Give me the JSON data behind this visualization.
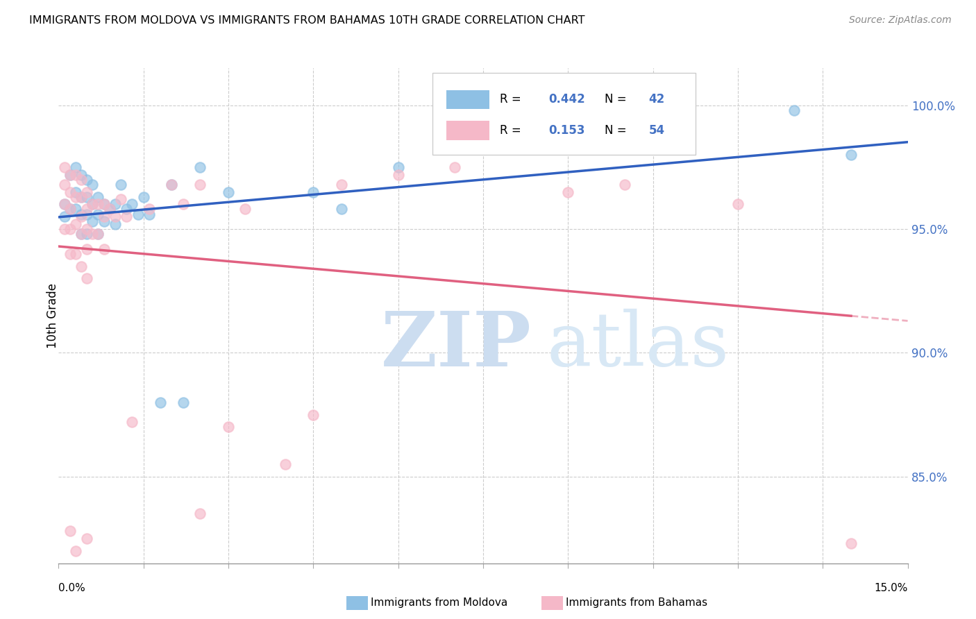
{
  "title": "IMMIGRANTS FROM MOLDOVA VS IMMIGRANTS FROM BAHAMAS 10TH GRADE CORRELATION CHART",
  "source": "Source: ZipAtlas.com",
  "ylabel": "10th Grade",
  "xmin": 0.0,
  "xmax": 0.15,
  "ymin": 0.815,
  "ymax": 1.015,
  "yticks": [
    0.85,
    0.9,
    0.95,
    1.0
  ],
  "ytick_labels": [
    "85.0%",
    "90.0%",
    "95.0%",
    "100.0%"
  ],
  "grid_color": "#cccccc",
  "moldova_color": "#8ec0e4",
  "bahamas_color": "#f5b8c8",
  "moldova_R": 0.442,
  "moldova_N": 42,
  "bahamas_R": 0.153,
  "bahamas_N": 54,
  "moldova_line_color": "#3060c0",
  "bahamas_line_color": "#e06080",
  "moldova_x": [
    0.001,
    0.001,
    0.002,
    0.002,
    0.003,
    0.003,
    0.003,
    0.004,
    0.004,
    0.004,
    0.004,
    0.005,
    0.005,
    0.005,
    0.005,
    0.006,
    0.006,
    0.006,
    0.007,
    0.007,
    0.007,
    0.008,
    0.008,
    0.009,
    0.01,
    0.01,
    0.011,
    0.012,
    0.013,
    0.014,
    0.015,
    0.016,
    0.018,
    0.02,
    0.022,
    0.025,
    0.03,
    0.045,
    0.05,
    0.06,
    0.13,
    0.14
  ],
  "moldova_y": [
    0.96,
    0.955,
    0.972,
    0.958,
    0.975,
    0.965,
    0.958,
    0.972,
    0.963,
    0.956,
    0.948,
    0.97,
    0.963,
    0.956,
    0.948,
    0.968,
    0.96,
    0.953,
    0.963,
    0.956,
    0.948,
    0.96,
    0.953,
    0.958,
    0.96,
    0.952,
    0.968,
    0.958,
    0.96,
    0.956,
    0.963,
    0.956,
    0.88,
    0.968,
    0.88,
    0.975,
    0.965,
    0.965,
    0.958,
    0.975,
    0.998,
    0.98
  ],
  "bahamas_x": [
    0.001,
    0.001,
    0.001,
    0.001,
    0.002,
    0.002,
    0.002,
    0.002,
    0.002,
    0.003,
    0.003,
    0.003,
    0.003,
    0.004,
    0.004,
    0.004,
    0.004,
    0.004,
    0.005,
    0.005,
    0.005,
    0.005,
    0.005,
    0.006,
    0.006,
    0.007,
    0.007,
    0.008,
    0.008,
    0.009,
    0.01,
    0.011,
    0.012,
    0.013,
    0.016,
    0.02,
    0.022,
    0.025,
    0.03,
    0.033,
    0.04,
    0.045,
    0.05,
    0.06,
    0.07,
    0.09,
    0.1,
    0.12,
    0.002,
    0.003,
    0.005,
    0.008,
    0.025,
    0.14
  ],
  "bahamas_y": [
    0.975,
    0.968,
    0.96,
    0.95,
    0.972,
    0.965,
    0.958,
    0.95,
    0.94,
    0.972,
    0.963,
    0.952,
    0.94,
    0.97,
    0.963,
    0.955,
    0.948,
    0.935,
    0.965,
    0.958,
    0.95,
    0.942,
    0.93,
    0.96,
    0.948,
    0.96,
    0.948,
    0.955,
    0.942,
    0.958,
    0.955,
    0.962,
    0.955,
    0.872,
    0.958,
    0.968,
    0.96,
    0.968,
    0.87,
    0.958,
    0.855,
    0.875,
    0.968,
    0.972,
    0.975,
    0.965,
    0.968,
    0.96,
    0.828,
    0.82,
    0.825,
    0.96,
    0.835,
    0.823
  ]
}
